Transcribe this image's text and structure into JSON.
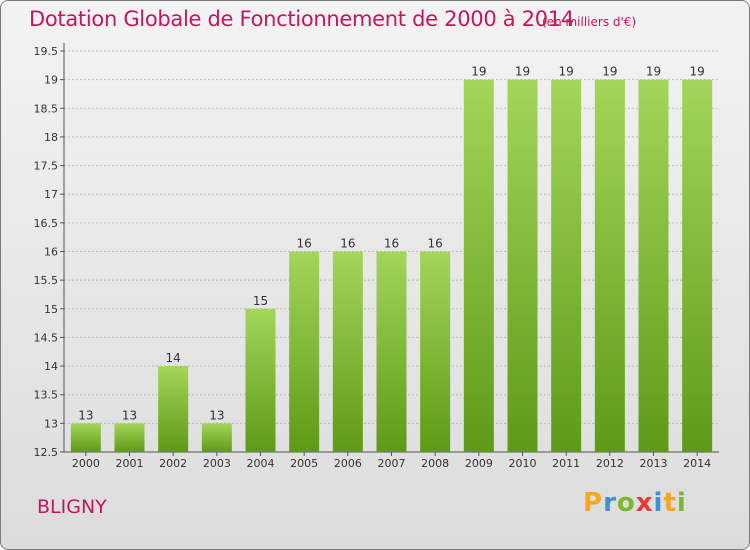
{
  "title": "Dotation Globale de Fonctionnement de 2000 à 2014",
  "unit_note": "(en milliers d'€)",
  "commune": "BLIGNY",
  "logo": {
    "letters": [
      "P",
      "r",
      "o",
      "x",
      "i",
      "t",
      "i"
    ],
    "colors": [
      "#f5a623",
      "#3d8fd6",
      "#7cb82f",
      "#e53935",
      "#3d8fd6",
      "#f5a623",
      "#7cb82f"
    ]
  },
  "colors": {
    "title": "#c2185b",
    "bar_light": "#a3d65a",
    "bar_dark": "#5e9a17",
    "grid": "#bbbbbb"
  },
  "chart_data": {
    "type": "bar",
    "categories": [
      "2000",
      "2001",
      "2002",
      "2003",
      "2004",
      "2005",
      "2006",
      "2007",
      "2008",
      "2009",
      "2010",
      "2011",
      "2012",
      "2013",
      "2014"
    ],
    "values": [
      13,
      13,
      14,
      13,
      15,
      16,
      16,
      16,
      16,
      19,
      19,
      19,
      19,
      19,
      19
    ],
    "data_labels": [
      "13",
      "13",
      "14",
      "13",
      "15",
      "16",
      "16",
      "16",
      "16",
      "19",
      "19",
      "19",
      "19",
      "19",
      "19"
    ],
    "yticks": [
      12.5,
      13,
      13.5,
      14,
      14.5,
      15,
      15.5,
      16,
      16.5,
      17,
      17.5,
      18,
      18.5,
      19,
      19.5
    ],
    "ylim": [
      12.5,
      19.5
    ],
    "grid": true,
    "title": "Dotation Globale de Fonctionnement de 2000 à 2014",
    "xlabel": "",
    "ylabel": ""
  }
}
